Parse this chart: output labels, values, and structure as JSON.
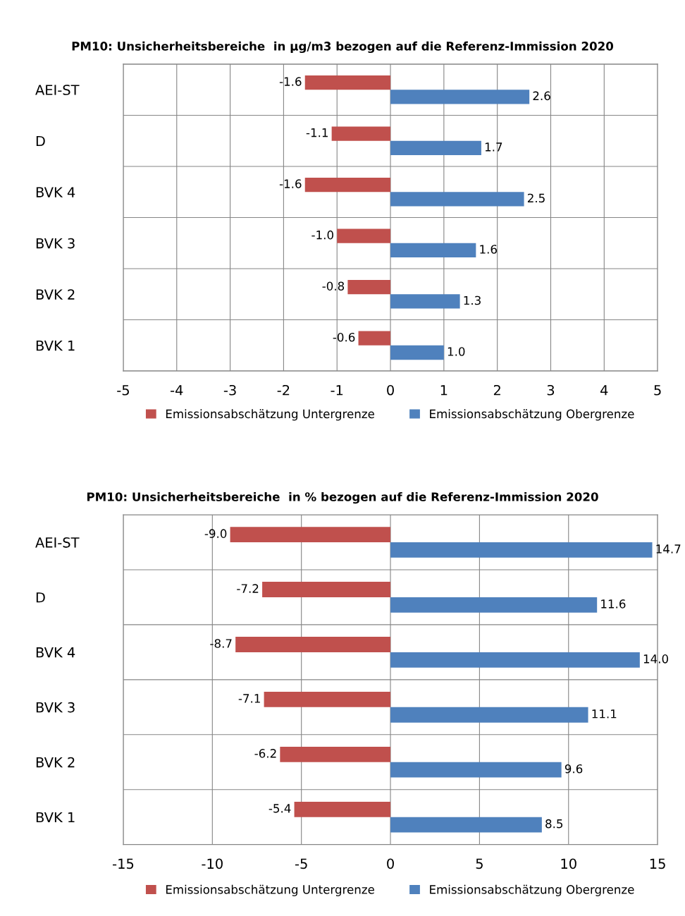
{
  "chart_data": [
    {
      "type": "bar",
      "orientation": "horizontal",
      "title": "PM10: Unsicherheitsbereiche  in µg/m3 bezogen auf die Referenz-Immission 2020",
      "categories": [
        "AEI-ST",
        "D",
        "BVK 4",
        "BVK 3",
        "BVK 2",
        "BVK 1"
      ],
      "series": [
        {
          "name": "Emissionsabschätzung Untergrenze",
          "color": "#c0504d",
          "values": [
            -1.6,
            -1.1,
            -1.6,
            -1.0,
            -0.8,
            -0.6
          ],
          "value_labels": [
            "-1.6",
            "-1.1",
            "-1.6",
            "-1.0",
            "-0.8",
            "-0.6"
          ]
        },
        {
          "name": "Emissionsabschätzung Obergrenze",
          "color": "#4f81bd",
          "values": [
            2.6,
            1.7,
            2.5,
            1.6,
            1.3,
            1.0
          ],
          "value_labels": [
            "2.6",
            "1.7",
            "2.5",
            "1.6",
            "1.3",
            "1.0"
          ]
        }
      ],
      "xlim": [
        -5,
        5
      ],
      "xticks": [
        -5,
        -4,
        -3,
        -2,
        -1,
        0,
        1,
        2,
        3,
        4,
        5
      ],
      "grid": true,
      "legend": "bottom"
    },
    {
      "type": "bar",
      "orientation": "horizontal",
      "title": "PM10: Unsicherheitsbereiche  in % bezogen auf die Referenz-Immission 2020",
      "categories": [
        "AEI-ST",
        "D",
        "BVK 4",
        "BVK 3",
        "BVK 2",
        "BVK 1"
      ],
      "series": [
        {
          "name": "Emissionsabschätzung Untergrenze",
          "color": "#c0504d",
          "values": [
            -9.0,
            -7.2,
            -8.7,
            -7.1,
            -6.2,
            -5.4
          ],
          "value_labels": [
            "-9.0",
            "-7.2",
            "-8.7",
            "-7.1",
            "-6.2",
            "-5.4"
          ]
        },
        {
          "name": "Emissionsabschätzung Obergrenze",
          "color": "#4f81bd",
          "values": [
            14.7,
            11.6,
            14.0,
            11.1,
            9.6,
            8.5
          ],
          "value_labels": [
            "14.7",
            "11.6",
            "14.0",
            "11.1",
            "9.6",
            "8.5"
          ]
        }
      ],
      "xlim": [
        -15,
        15
      ],
      "xticks": [
        -15,
        -10,
        -5,
        0,
        5,
        10,
        15
      ],
      "grid": true,
      "legend": "bottom"
    }
  ]
}
